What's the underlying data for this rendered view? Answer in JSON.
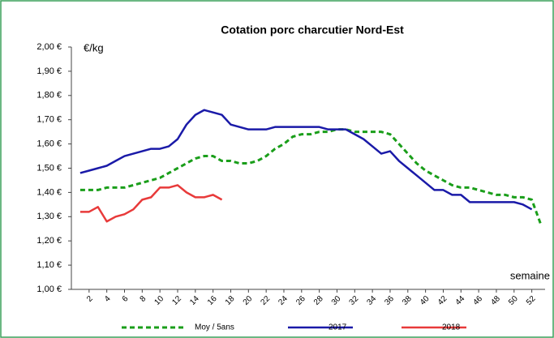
{
  "chart_data": {
    "type": "line",
    "title": "Cotation porc charcutier Nord-Est",
    "y_label": "€/kg",
    "x_label": "semaine",
    "x": [
      1,
      2,
      3,
      4,
      5,
      6,
      7,
      8,
      9,
      10,
      11,
      12,
      13,
      14,
      15,
      16,
      17,
      18,
      19,
      20,
      21,
      22,
      23,
      24,
      25,
      26,
      27,
      28,
      29,
      30,
      31,
      32,
      33,
      34,
      35,
      36,
      37,
      38,
      39,
      40,
      41,
      42,
      43,
      44,
      45,
      46,
      47,
      48,
      49,
      50,
      51,
      52,
      53
    ],
    "series": [
      {
        "name": "Moy / 5ans",
        "color": "#1a9e1a",
        "dash": true,
        "values": [
          1.41,
          1.41,
          1.41,
          1.42,
          1.42,
          1.42,
          1.43,
          1.44,
          1.45,
          1.46,
          1.48,
          1.5,
          1.52,
          1.54,
          1.55,
          1.55,
          1.53,
          1.53,
          1.52,
          1.52,
          1.53,
          1.55,
          1.58,
          1.6,
          1.63,
          1.64,
          1.64,
          1.65,
          1.65,
          1.66,
          1.66,
          1.65,
          1.65,
          1.65,
          1.65,
          1.64,
          1.6,
          1.56,
          1.52,
          1.49,
          1.47,
          1.45,
          1.43,
          1.42,
          1.42,
          1.41,
          1.4,
          1.39,
          1.39,
          1.38,
          1.38,
          1.37,
          1.27
        ]
      },
      {
        "name": "2017",
        "color": "#1a1aa8",
        "dash": false,
        "values": [
          1.48,
          1.49,
          1.5,
          1.51,
          1.53,
          1.55,
          1.56,
          1.57,
          1.58,
          1.58,
          1.59,
          1.62,
          1.68,
          1.72,
          1.74,
          1.73,
          1.72,
          1.68,
          1.67,
          1.66,
          1.66,
          1.66,
          1.67,
          1.67,
          1.67,
          1.67,
          1.67,
          1.67,
          1.66,
          1.66,
          1.66,
          1.64,
          1.62,
          1.59,
          1.56,
          1.57,
          1.53,
          1.5,
          1.47,
          1.44,
          1.41,
          1.41,
          1.39,
          1.39,
          1.36,
          1.36,
          1.36,
          1.36,
          1.36,
          1.36,
          1.35,
          1.33,
          null
        ]
      },
      {
        "name": "2018",
        "color": "#e83a3a",
        "dash": false,
        "values": [
          1.32,
          1.32,
          1.34,
          1.28,
          1.3,
          1.31,
          1.33,
          1.37,
          1.38,
          1.42,
          1.42,
          1.43,
          1.4,
          1.38,
          1.38,
          1.39,
          1.37,
          null,
          null,
          null,
          null,
          null,
          null,
          null,
          null,
          null,
          null,
          null,
          null,
          null,
          null,
          null,
          null,
          null,
          null,
          null,
          null,
          null,
          null,
          null,
          null,
          null,
          null,
          null,
          null,
          null,
          null,
          null,
          null,
          null,
          null,
          null,
          null
        ]
      }
    ],
    "xlim": [
      0,
      53.5
    ],
    "xticks": [
      2,
      4,
      6,
      8,
      10,
      12,
      14,
      16,
      18,
      20,
      22,
      24,
      26,
      28,
      30,
      32,
      34,
      36,
      38,
      40,
      42,
      44,
      46,
      48,
      50,
      52
    ],
    "ylim": [
      1.0,
      2.0
    ],
    "yticks": [
      {
        "value": 1.0,
        "label": "1,00 €"
      },
      {
        "value": 1.1,
        "label": "1,10 €"
      },
      {
        "value": 1.2,
        "label": "1,20 €"
      },
      {
        "value": 1.3,
        "label": "1,30 €"
      },
      {
        "value": 1.4,
        "label": "1,40 €"
      },
      {
        "value": 1.5,
        "label": "1,50 €"
      },
      {
        "value": 1.6,
        "label": "1,60 €"
      },
      {
        "value": 1.7,
        "label": "1,70 €"
      },
      {
        "value": 1.8,
        "label": "1,80 €"
      },
      {
        "value": 1.9,
        "label": "1,90 €"
      },
      {
        "value": 2.0,
        "label": "2,00 €"
      }
    ],
    "grid": false,
    "legend": "bottom"
  }
}
